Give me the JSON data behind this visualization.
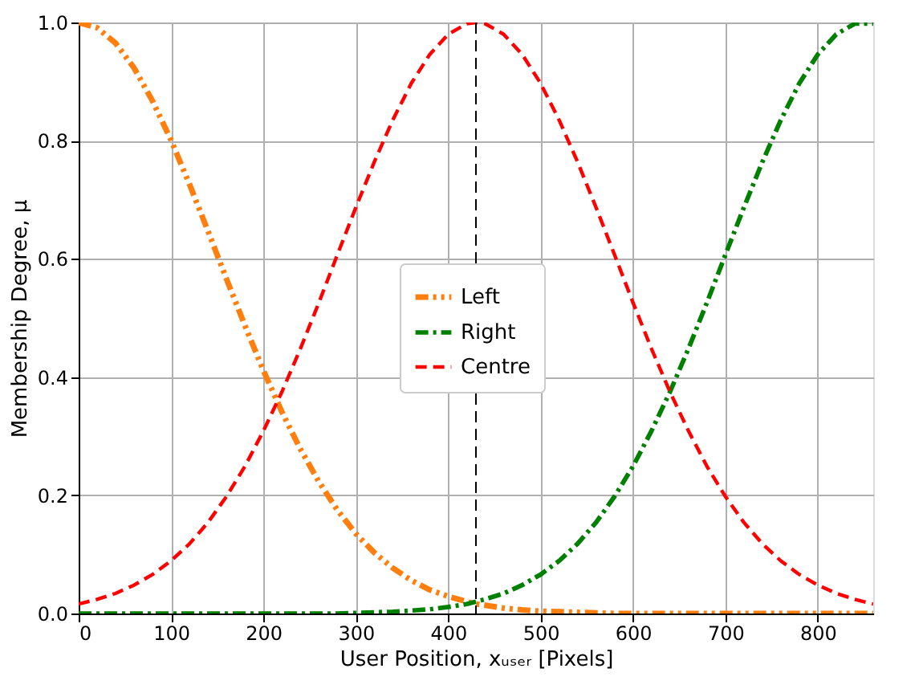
{
  "chart_data": {
    "type": "line",
    "xlabel": "User Position, xᵤₛₑᵣ [Pixels]",
    "ylabel": "Membership Degree, μ",
    "x": [
      0,
      20,
      40,
      60,
      80,
      100,
      120,
      140,
      160,
      180,
      200,
      220,
      240,
      260,
      280,
      300,
      320,
      340,
      360,
      380,
      400,
      420,
      430,
      440,
      460,
      480,
      500,
      520,
      540,
      560,
      580,
      600,
      620,
      640,
      660,
      680,
      700,
      720,
      740,
      760,
      780,
      800,
      820,
      840,
      860
    ],
    "series": [
      {
        "name": "Left",
        "color": "#ff7f0e",
        "line_style": "dashdotdot",
        "values": [
          1,
          0.991,
          0.965,
          0.923,
          0.867,
          0.801,
          0.726,
          0.647,
          0.566,
          0.487,
          0.411,
          0.341,
          0.278,
          0.223,
          0.175,
          0.135,
          0.103,
          0.077,
          0.056,
          0.04,
          0.029,
          0.02,
          0.016,
          0.014,
          0.009,
          0.006,
          0.004,
          0.003,
          0.002,
          0.001,
          0,
          0,
          0,
          0,
          0,
          0,
          0,
          0,
          0,
          0,
          0,
          0,
          0,
          0,
          0
        ]
      },
      {
        "name": "Right",
        "color": "#008000",
        "line_style": "dashdot",
        "values": [
          0,
          0,
          0,
          0,
          0,
          0,
          0,
          0,
          0,
          0,
          0,
          0,
          0,
          0,
          0,
          0.001,
          0.002,
          0.003,
          0.005,
          0.007,
          0.011,
          0.016,
          0.02,
          0.024,
          0.034,
          0.048,
          0.066,
          0.089,
          0.118,
          0.154,
          0.198,
          0.249,
          0.309,
          0.375,
          0.448,
          0.526,
          0.607,
          0.687,
          0.764,
          0.835,
          0.897,
          0.946,
          0.98,
          0.998,
          0.998
        ]
      },
      {
        "name": "Centre",
        "color": "#ff0000",
        "line_style": "dashed",
        "values": [
          0.016,
          0.024,
          0.034,
          0.048,
          0.066,
          0.089,
          0.118,
          0.154,
          0.198,
          0.249,
          0.309,
          0.375,
          0.448,
          0.526,
          0.607,
          0.687,
          0.764,
          0.835,
          0.897,
          0.946,
          0.98,
          0.998,
          1,
          0.998,
          0.98,
          0.946,
          0.897,
          0.835,
          0.764,
          0.687,
          0.607,
          0.526,
          0.448,
          0.375,
          0.309,
          0.249,
          0.198,
          0.154,
          0.118,
          0.089,
          0.066,
          0.048,
          0.034,
          0.024,
          0.016
        ]
      }
    ],
    "xlim": [
      0,
      860
    ],
    "xticks": [
      0,
      100,
      200,
      300,
      400,
      500,
      600,
      700,
      800
    ],
    "ylim": [
      0,
      1
    ],
    "yticks": [
      {
        "value": 0,
        "label": "0.0"
      },
      {
        "value": 0.2,
        "label": "0.2"
      },
      {
        "value": 0.4,
        "label": "0.4"
      },
      {
        "value": 0.6,
        "label": "0.6"
      },
      {
        "value": 0.8,
        "label": "0.8"
      },
      {
        "value": 1,
        "label": "1.0"
      }
    ],
    "ref_lines": [
      {
        "axis": "x",
        "value": 430,
        "color": "#000000",
        "line_style": "dashed"
      }
    ],
    "grid": true,
    "legend": "center"
  }
}
